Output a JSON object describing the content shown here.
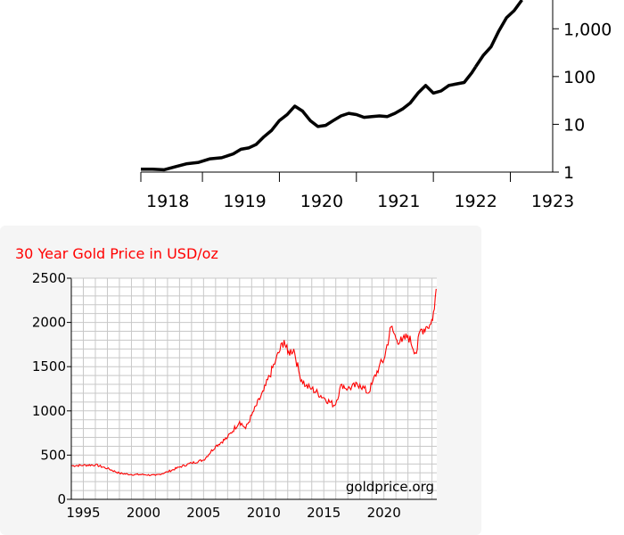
{
  "chart_data": [
    {
      "type": "line",
      "title": "",
      "xlabel": "",
      "ylabel": "",
      "x_tick_labels": [
        "1918",
        "1919",
        "1920",
        "1921",
        "1922",
        "1923"
      ],
      "y_tick_labels": [
        "1",
        "10",
        "100",
        "1,000"
      ],
      "y_scale": "log",
      "xlim": [
        1917.7,
        1923.05
      ],
      "ylim": [
        1,
        4000
      ],
      "line_color": "#000000",
      "series": [
        {
          "x": [
            1917.7,
            1917.85,
            1918.0,
            1918.15,
            1918.3,
            1918.45,
            1918.6,
            1918.75,
            1918.9,
            1919.0,
            1919.1,
            1919.2,
            1919.3,
            1919.4,
            1919.5,
            1919.6,
            1919.7,
            1919.8,
            1919.9,
            1920.0,
            1920.1,
            1920.2,
            1920.3,
            1920.4,
            1920.5,
            1920.6,
            1920.7,
            1920.8,
            1920.9,
            1921.0,
            1921.1,
            1921.2,
            1921.3,
            1921.4,
            1921.5,
            1921.6,
            1921.7,
            1921.8,
            1921.9,
            1922.0,
            1922.05
          ],
          "y": [
            1.15,
            1.15,
            1.12,
            1.3,
            1.5,
            1.6,
            1.9,
            2.0,
            2.4,
            3.0,
            3.2,
            3.8,
            5.5,
            7.5,
            12,
            16,
            24,
            19,
            12,
            9.0,
            9.5,
            12,
            15,
            17,
            16,
            14,
            14.5,
            15,
            14.5,
            17,
            21,
            28,
            45,
            65,
            45,
            50,
            65,
            70,
            75,
            120,
            160
          ]
        },
        {
          "x": [
            1922.05,
            1922.15,
            1922.25,
            1922.35,
            1922.45,
            1922.55,
            1922.65
          ],
          "y": [
            160,
            280,
            420,
            900,
            1700,
            2400,
            4000
          ]
        }
      ]
    },
    {
      "type": "line",
      "title": "30 Year Gold Price in USD/oz",
      "annotation": "goldprice.org",
      "xlabel": "",
      "ylabel": "",
      "x_ticks": [
        1995,
        2000,
        2005,
        2010,
        2015,
        2020
      ],
      "y_ticks": [
        0,
        500,
        1000,
        1500,
        2000,
        2500
      ],
      "xlim": [
        1994,
        2024.4
      ],
      "ylim": [
        0,
        2500
      ],
      "grid": true,
      "line_color": "#ff0000",
      "series": [
        {
          "x": [
            1994.0,
            1995.0,
            1996.0,
            1997.0,
            1998.0,
            1999.0,
            2000.0,
            2001.0,
            2002.0,
            2003.0,
            2004.0,
            2005.0,
            2006.0,
            2007.0,
            2008.0,
            2008.5,
            2009.0,
            2010.0,
            2011.0,
            2011.7,
            2012.0,
            2012.5,
            2013.0,
            2013.5,
            2014.0,
            2015.0,
            2015.9,
            2016.5,
            2017.0,
            2018.0,
            2018.7,
            2019.0,
            2019.6,
            2020.0,
            2020.6,
            2021.0,
            2021.5,
            2022.0,
            2022.7,
            2023.0,
            2023.5,
            2023.9,
            2024.2,
            2024.35
          ],
          "y": [
            380,
            385,
            390,
            350,
            295,
            280,
            280,
            270,
            310,
            365,
            410,
            445,
            600,
            700,
            880,
            800,
            950,
            1225,
            1570,
            1800,
            1650,
            1700,
            1400,
            1280,
            1250,
            1150,
            1060,
            1300,
            1250,
            1300,
            1200,
            1300,
            1500,
            1580,
            1950,
            1820,
            1780,
            1850,
            1650,
            1900,
            1950,
            1980,
            2150,
            2380
          ]
        }
      ]
    }
  ]
}
